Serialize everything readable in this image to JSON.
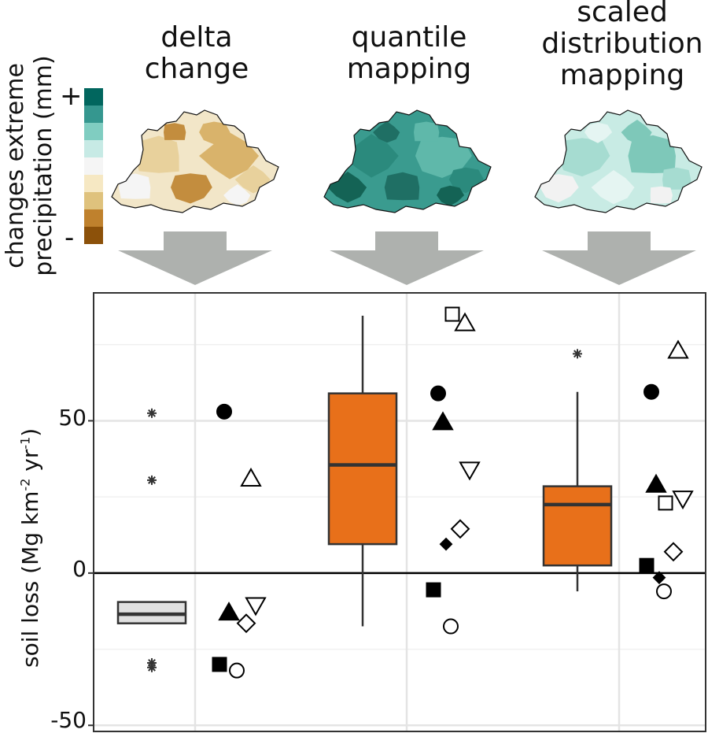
{
  "methods": [
    {
      "title_lines": [
        "delta",
        "change"
      ],
      "palette": [
        "#f2e6c8",
        "#e8d19c",
        "#d9b36b",
        "#c38d3e",
        "#f5f5f5"
      ]
    },
    {
      "title_lines": [
        "quantile",
        "mapping"
      ],
      "palette": [
        "#3a9b8f",
        "#2b8a7d",
        "#5fb8aa",
        "#1f6f64",
        "#146355"
      ]
    },
    {
      "title_lines": [
        "scaled",
        "distribution",
        "mapping"
      ],
      "palette": [
        "#c8ebe4",
        "#a6dcd1",
        "#7ec8b9",
        "#e5f5f2",
        "#f2f2f2"
      ]
    }
  ],
  "colorbar": {
    "label_lines": [
      "changes extreme",
      "precipitation (mm)"
    ],
    "plus": "+",
    "minus": "-",
    "colors": [
      "#01665e",
      "#35978f",
      "#80cdc1",
      "#c7eae5",
      "#f5f5f5",
      "#f6e8c3",
      "#dfc27d",
      "#bf812d",
      "#8c510a"
    ]
  },
  "chart_data": {
    "type": "boxplot",
    "title": "",
    "ylabel": "soil loss (Mg km-2 yr-1)",
    "ylabel_parts": {
      "main": "soil loss (Mg km",
      "sup1": "-2",
      "mid": " yr",
      "sup2": "-1",
      "end": ")"
    },
    "ylim": [
      -52,
      92
    ],
    "yticks": [
      -50,
      0,
      50
    ],
    "grid": true,
    "categories": [
      "delta change",
      "quantile mapping",
      "scaled distribution mapping"
    ],
    "boxes": [
      {
        "category": "delta change",
        "q1": -16.5,
        "median": -13.5,
        "q3": -9.5,
        "whisker_low": -16.5,
        "whisker_high": -9.5,
        "fill": "#e0e0e0",
        "outliers": [
          52.5,
          30.5,
          -29.5,
          -31
        ]
      },
      {
        "category": "quantile mapping",
        "q1": 9.5,
        "median": 35.5,
        "q3": 59,
        "whisker_low": -17.5,
        "whisker_high": 84.5,
        "fill": "#e8701a",
        "outliers": []
      },
      {
        "category": "scaled distribution mapping",
        "q1": 2.5,
        "median": 22.5,
        "q3": 28.5,
        "whisker_low": -6,
        "whisker_high": 59.5,
        "fill": "#e8701a",
        "outliers": [
          72
        ]
      }
    ],
    "models": [
      {
        "category": "delta change",
        "points": [
          {
            "shape": "circle-filled",
            "y": 53
          },
          {
            "shape": "triangle-open",
            "y": 31
          },
          {
            "shape": "triangle-down-open",
            "y": -10.5
          },
          {
            "shape": "triangle-filled",
            "y": -13
          },
          {
            "shape": "diamond-open",
            "y": -16.5
          },
          {
            "shape": "square-filled",
            "y": -30
          },
          {
            "shape": "circle-open",
            "y": -32
          }
        ]
      },
      {
        "category": "quantile mapping",
        "points": [
          {
            "shape": "square-open",
            "y": 85
          },
          {
            "shape": "triangle-open",
            "y": 82
          },
          {
            "shape": "circle-filled",
            "y": 59
          },
          {
            "shape": "triangle-filled",
            "y": 49.5
          },
          {
            "shape": "triangle-down-open",
            "y": 34
          },
          {
            "shape": "diamond-open",
            "y": 14.5
          },
          {
            "shape": "diamond-filled",
            "y": 9.5
          },
          {
            "shape": "square-filled",
            "y": -5.5
          },
          {
            "shape": "circle-open",
            "y": -17.5
          }
        ]
      },
      {
        "category": "scaled distribution mapping",
        "points": [
          {
            "shape": "triangle-open",
            "y": 73
          },
          {
            "shape": "circle-filled",
            "y": 59.5
          },
          {
            "shape": "triangle-filled",
            "y": 29
          },
          {
            "shape": "triangle-down-open",
            "y": 24.5
          },
          {
            "shape": "square-open",
            "y": 23
          },
          {
            "shape": "diamond-open",
            "y": 7
          },
          {
            "shape": "square-filled",
            "y": 2.5
          },
          {
            "shape": "diamond-filled",
            "y": -1.5
          },
          {
            "shape": "circle-open",
            "y": -6
          }
        ]
      }
    ]
  }
}
